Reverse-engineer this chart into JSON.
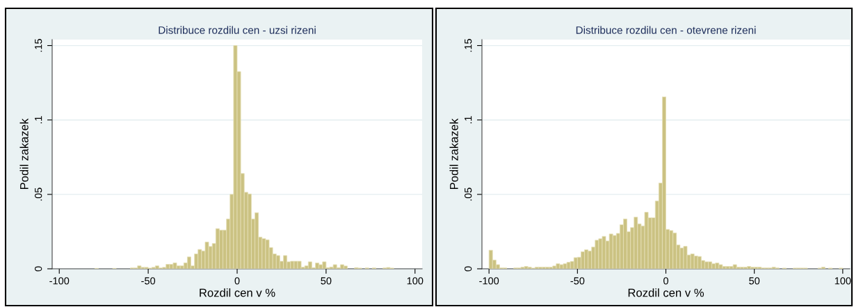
{
  "chart_data": [
    {
      "type": "histogram",
      "title": "Distribuce rozdilu cen - uzsi rizeni",
      "xlabel": "Rozdil cen v %",
      "ylabel": "Podil zakazek",
      "color": "#cbc282",
      "grid": "y",
      "xlim": [
        -104,
        104
      ],
      "ylim": [
        0,
        0.154
      ],
      "xticks": [
        -100,
        -50,
        0,
        50,
        100
      ],
      "yticks": [
        {
          "value": 0,
          "label": "0"
        },
        {
          "value": 0.05,
          "label": ".05"
        },
        {
          "value": 0.1,
          "label": ".1"
        },
        {
          "value": 0.15,
          "label": ".15"
        }
      ],
      "bins": [
        -100,
        -98,
        -96,
        -94,
        -92,
        -90,
        -88,
        -86,
        -84,
        -82,
        -80,
        -78,
        -76,
        -74,
        -72,
        -70,
        -68,
        -66,
        -64,
        -62,
        -60,
        -58,
        -56,
        -54,
        -52,
        -50,
        -48,
        -46,
        -44,
        -42,
        -40,
        -38,
        -36,
        -34,
        -32,
        -30,
        -28,
        -26,
        -24,
        -22,
        -20,
        -18,
        -16,
        -14,
        -12,
        -10,
        -8,
        -6,
        -4,
        -2,
        0,
        2,
        4,
        6,
        8,
        10,
        12,
        14,
        16,
        18,
        20,
        22,
        24,
        26,
        28,
        30,
        32,
        34,
        36,
        38,
        40,
        42,
        44,
        46,
        48,
        50,
        52,
        54,
        56,
        58,
        60,
        62,
        64,
        66,
        68,
        70,
        72,
        74,
        76,
        78,
        80,
        82,
        84,
        86,
        88,
        90,
        92,
        94,
        96,
        98,
        100
      ],
      "values": [
        0,
        0,
        0,
        0,
        0,
        0,
        0,
        0,
        0,
        0,
        0.0003,
        0,
        0,
        0,
        0,
        0.0003,
        0,
        0,
        0,
        0,
        0.0006,
        0.0006,
        0.002,
        0.001,
        0.001,
        0.0005,
        0.001,
        0.002,
        0.0006,
        0.001,
        0.003,
        0.003,
        0.004,
        0.002,
        0.002,
        0.004,
        0.008,
        0.002,
        0.01,
        0.013,
        0.012,
        0.018,
        0.015,
        0.017,
        0.027,
        0.026,
        0.026,
        0.0335,
        0.05,
        0.15,
        0.1325,
        0.064,
        0.0514,
        0.0503,
        0.0335,
        0.0377,
        0.0213,
        0.0203,
        0.0195,
        0.0143,
        0.01,
        0.0089,
        0.0051,
        0.0089,
        0.0047,
        0.0051,
        0.0051,
        0.0051,
        0.0011,
        0.002,
        0.0047,
        0.0008,
        0.0039,
        0.0028,
        0.0047,
        0.0008,
        0.0012,
        0.0028,
        0.0008,
        0.0028,
        0.0019,
        0,
        0,
        0.0008,
        0.0005,
        0,
        0.0006,
        0,
        0.0006,
        0,
        0,
        0.0006,
        0.0009,
        0.0005,
        0,
        0,
        0,
        0,
        0,
        0
      ]
    },
    {
      "type": "histogram",
      "title": "Distribuce rozdilu cen - otevrene rizeni",
      "xlabel": "Rozdil cen v %",
      "ylabel": "Podil zakazek",
      "color": "#cbc282",
      "grid": "y",
      "xlim": [
        -104,
        104
      ],
      "ylim": [
        0,
        0.154
      ],
      "xticks": [
        -100,
        -50,
        0,
        50,
        100
      ],
      "yticks": [
        {
          "value": 0,
          "label": "0"
        },
        {
          "value": 0.05,
          "label": ".05"
        },
        {
          "value": 0.1,
          "label": ".1"
        },
        {
          "value": 0.15,
          "label": ".15"
        }
      ],
      "bins": [
        -100,
        -98,
        -96,
        -94,
        -92,
        -90,
        -88,
        -86,
        -84,
        -82,
        -80,
        -78,
        -76,
        -74,
        -72,
        -70,
        -68,
        -66,
        -64,
        -62,
        -60,
        -58,
        -56,
        -54,
        -52,
        -50,
        -48,
        -46,
        -44,
        -42,
        -40,
        -38,
        -36,
        -34,
        -32,
        -30,
        -28,
        -26,
        -24,
        -22,
        -20,
        -18,
        -16,
        -14,
        -12,
        -10,
        -8,
        -6,
        -4,
        -2,
        0,
        2,
        4,
        6,
        8,
        10,
        12,
        14,
        16,
        18,
        20,
        22,
        24,
        26,
        28,
        30,
        32,
        34,
        36,
        38,
        40,
        42,
        44,
        46,
        48,
        50,
        52,
        54,
        56,
        58,
        60,
        62,
        64,
        66,
        68,
        70,
        72,
        74,
        76,
        78,
        80,
        82,
        84,
        86,
        88,
        90,
        92,
        94,
        96,
        98,
        100
      ],
      "values": [
        0.0125,
        0.0059,
        0.0028,
        0.0006,
        0.0006,
        0,
        0,
        0.0006,
        0.0006,
        0.0011,
        0.0016,
        0.0011,
        0.0005,
        0.0011,
        0.0011,
        0.0011,
        0.0011,
        0.0011,
        0.0019,
        0.0034,
        0.0028,
        0.0034,
        0.0044,
        0.005,
        0.0075,
        0.0078,
        0.0115,
        0.0128,
        0.012,
        0.0146,
        0.0192,
        0.0202,
        0.0218,
        0.0187,
        0.0234,
        0.0224,
        0.0238,
        0.0296,
        0.0335,
        0.0249,
        0.0277,
        0.0347,
        0.0302,
        0.0288,
        0.038,
        0.0343,
        0.0343,
        0.0456,
        0.0576,
        0.1155,
        0.0265,
        0.0257,
        0.0241,
        0.016,
        0.014,
        0.0151,
        0.0093,
        0.01,
        0.0086,
        0.0083,
        0.0056,
        0.0047,
        0.0047,
        0.0034,
        0.0039,
        0.0028,
        0.0016,
        0.0016,
        0.0016,
        0.0028,
        0.0011,
        0.0011,
        0.0011,
        0.0016,
        0.0011,
        0.0011,
        0.0011,
        0.0006,
        0.0006,
        0.0006,
        0.0011,
        0.0006,
        0,
        0.0005,
        0,
        0,
        0.0005,
        0.0005,
        0.0005,
        0.0005,
        0,
        0,
        0,
        0.0005,
        0.0011,
        0,
        0.0005,
        0,
        0,
        0.0005
      ]
    }
  ]
}
